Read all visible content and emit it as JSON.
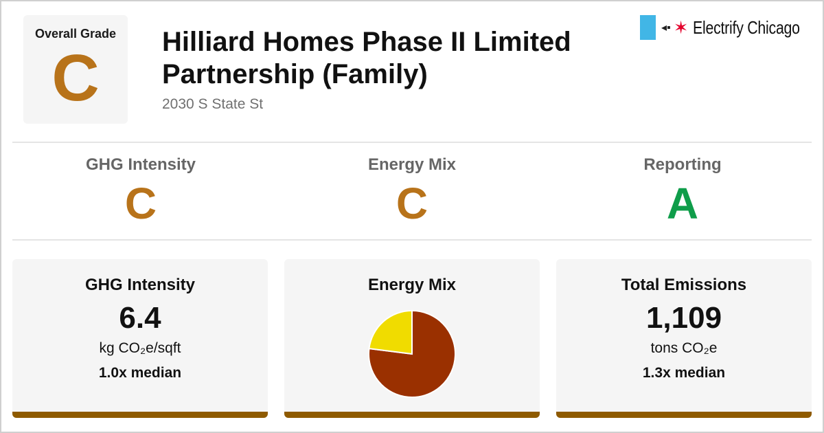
{
  "header": {
    "overall_label": "Overall Grade",
    "overall_grade": "C",
    "building_name": "Hilliard Homes Phase II Limited Partnership (Family)",
    "address": "2030 S State St",
    "brand_name": "Electrify Chicago"
  },
  "colors": {
    "grade_c": "#b8731a",
    "grade_a": "#0f9d4a",
    "card_bar": "#8e5a00",
    "flag_blue": "#41b6e6",
    "star_red": "#e4002b",
    "pie_primary": "#9a3000",
    "pie_secondary": "#f0dc00"
  },
  "grades": [
    {
      "name": "GHG Intensity",
      "grade": "C"
    },
    {
      "name": "Energy Mix",
      "grade": "C"
    },
    {
      "name": "Reporting",
      "grade": "A"
    }
  ],
  "cards": {
    "ghg": {
      "title": "GHG Intensity",
      "value": "6.4",
      "unit": "kg CO₂e/sqft",
      "median": "1.0x median"
    },
    "mix": {
      "title": "Energy Mix"
    },
    "emissions": {
      "title": "Total Emissions",
      "value": "1,109",
      "unit": "tons CO₂e",
      "median": "1.3x median"
    }
  },
  "chart_data": {
    "type": "pie",
    "title": "Energy Mix",
    "slices": [
      {
        "value": 0.77,
        "color": "#9a3000"
      },
      {
        "value": 0.23,
        "color": "#f0dc00"
      }
    ]
  }
}
